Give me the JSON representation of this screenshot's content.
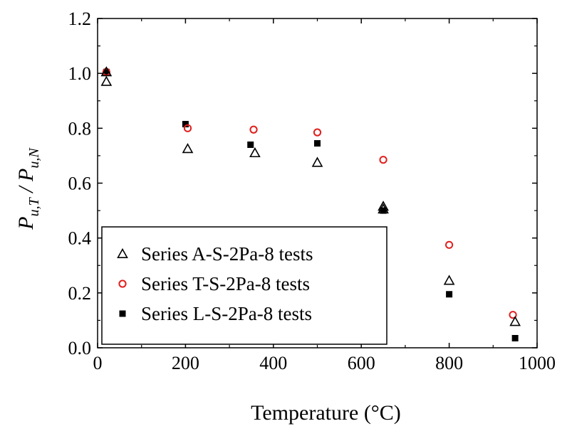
{
  "chart_data": {
    "type": "scatter",
    "title": "",
    "xlabel": "Temperature  (°C)",
    "ylabel": {
      "P": "P",
      "sub1": "u,T",
      "slash": "/",
      "sub2": "u,N"
    },
    "xlim": [
      0,
      1000
    ],
    "ylim": [
      0.0,
      1.2
    ],
    "xticks": [
      "0",
      "200",
      "400",
      "600",
      "800",
      "1000"
    ],
    "yticks": [
      "0.0",
      "0.2",
      "0.4",
      "0.6",
      "0.8",
      "1.0",
      "1.2"
    ],
    "grid": false,
    "legend_position": "bottom-left",
    "series": [
      {
        "name": "Series A-S-2Pa-8 tests",
        "marker": "triangle-open",
        "color": "#000000",
        "x": [
          20,
          20,
          205,
          358,
          500,
          650,
          650,
          800,
          950
        ],
        "y": [
          1.005,
          0.97,
          0.725,
          0.71,
          0.675,
          0.515,
          0.505,
          0.245,
          0.095
        ]
      },
      {
        "name": "Series T-S-2Pa-8 tests",
        "marker": "circle-open",
        "color": "#e0201e",
        "x": [
          20,
          205,
          355,
          500,
          650,
          800,
          945
        ],
        "y": [
          1.005,
          0.8,
          0.795,
          0.785,
          0.685,
          0.375,
          0.12
        ]
      },
      {
        "name": "Series L-S-2Pa-8 tests",
        "marker": "square-filled",
        "color": "#000000",
        "x": [
          20,
          200,
          348,
          500,
          650,
          800,
          950
        ],
        "y": [
          1.005,
          0.815,
          0.74,
          0.745,
          0.5,
          0.195,
          0.035
        ]
      }
    ]
  }
}
